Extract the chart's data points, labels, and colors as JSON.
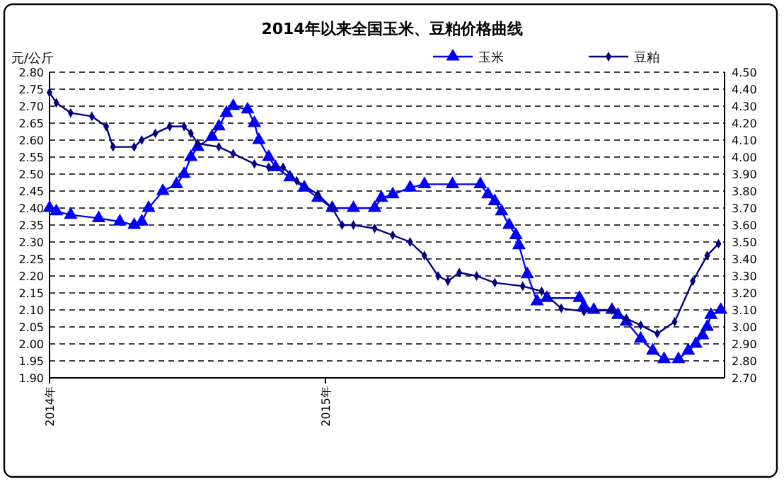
{
  "chart_data": {
    "type": "line",
    "title": "2014年以来全国玉米、豆粕价格曲线",
    "ylabel": "元/公斤",
    "legend": "top",
    "grid": "y",
    "xlim": [
      "2014-01-01",
      "2016-06-12"
    ],
    "xticks": [
      {
        "value": "2014-01-01",
        "label": "2014年"
      },
      {
        "value": "2015-01-01",
        "label": "2015年"
      }
    ],
    "ylim": [
      1.9,
      2.8
    ],
    "yticks": [
      {
        "value": 1.9,
        "label": "1.90"
      },
      {
        "value": 1.95,
        "label": "1.95"
      },
      {
        "value": 2.0,
        "label": "2.00"
      },
      {
        "value": 2.05,
        "label": "2.05"
      },
      {
        "value": 2.1,
        "label": "2.10"
      },
      {
        "value": 2.15,
        "label": "2.15"
      },
      {
        "value": 2.2,
        "label": "2.20"
      },
      {
        "value": 2.25,
        "label": "2.25"
      },
      {
        "value": 2.3,
        "label": "2.30"
      },
      {
        "value": 2.35,
        "label": "2.35"
      },
      {
        "value": 2.4,
        "label": "2.40"
      },
      {
        "value": 2.45,
        "label": "2.45"
      },
      {
        "value": 2.5,
        "label": "2.50"
      },
      {
        "value": 2.55,
        "label": "2.55"
      },
      {
        "value": 2.6,
        "label": "2.60"
      },
      {
        "value": 2.65,
        "label": "2.65"
      },
      {
        "value": 2.7,
        "label": "2.70"
      },
      {
        "value": 2.75,
        "label": "2.75"
      },
      {
        "value": 2.8,
        "label": "2.80"
      }
    ],
    "y2lim": [
      2.7,
      4.5
    ],
    "y2ticks": [
      {
        "value": 2.7,
        "label": "2.70"
      },
      {
        "value": 2.8,
        "label": "2.80"
      },
      {
        "value": 2.9,
        "label": "2.90"
      },
      {
        "value": 3.0,
        "label": "3.00"
      },
      {
        "value": 3.1,
        "label": "3.10"
      },
      {
        "value": 3.2,
        "label": "3.20"
      },
      {
        "value": 3.3,
        "label": "3.30"
      },
      {
        "value": 3.4,
        "label": "3.40"
      },
      {
        "value": 3.5,
        "label": "3.50"
      },
      {
        "value": 3.6,
        "label": "3.60"
      },
      {
        "value": 3.7,
        "label": "3.70"
      },
      {
        "value": 3.8,
        "label": "3.80"
      },
      {
        "value": 3.9,
        "label": "3.90"
      },
      {
        "value": 4.0,
        "label": "4.00"
      },
      {
        "value": 4.1,
        "label": "4.10"
      },
      {
        "value": 4.2,
        "label": "4.20"
      },
      {
        "value": 4.3,
        "label": "4.30"
      },
      {
        "value": 4.4,
        "label": "4.40"
      },
      {
        "value": 4.5,
        "label": "4.50"
      }
    ],
    "series": [
      {
        "name": "玉米",
        "color": "#0000ff",
        "marker": "triangle",
        "x": [
          "2014-01-01",
          "2014-01-10",
          "2014-01-29",
          "2014-03-07",
          "2014-04-04",
          "2014-04-23",
          "2014-05-03",
          "2014-05-12",
          "2014-05-31",
          "2014-06-18",
          "2014-06-28",
          "2014-07-07",
          "2014-07-16",
          "2014-08-04",
          "2014-08-13",
          "2014-08-23",
          "2014-09-01",
          "2014-09-20",
          "2014-09-29",
          "2014-10-05",
          "2014-10-18",
          "2014-10-27",
          "2014-11-15",
          "2014-12-04",
          "2014-12-22",
          "2015-01-10",
          "2015-02-07",
          "2015-03-07",
          "2015-03-16",
          "2015-03-31",
          "2015-04-23",
          "2015-05-12",
          "2015-06-18",
          "2015-07-25",
          "2015-08-04",
          "2015-08-13",
          "2015-08-22",
          "2015-09-01",
          "2015-09-10",
          "2015-09-14",
          "2015-09-25",
          "2015-10-08",
          "2015-10-21",
          "2015-12-03",
          "2015-12-09",
          "2015-12-22",
          "2016-01-15",
          "2016-01-23",
          "2016-02-03",
          "2016-02-22",
          "2016-03-09",
          "2016-03-24",
          "2016-04-12",
          "2016-04-25",
          "2016-05-05",
          "2016-05-14",
          "2016-05-20",
          "2016-05-25",
          "2016-06-07"
        ],
        "values": [
          2.4,
          2.39,
          2.38,
          2.37,
          2.36,
          2.35,
          2.36,
          2.4,
          2.45,
          2.47,
          2.5,
          2.55,
          2.58,
          2.61,
          2.64,
          2.68,
          2.7,
          2.69,
          2.65,
          2.6,
          2.55,
          2.52,
          2.49,
          2.46,
          2.43,
          2.4,
          2.4,
          2.4,
          2.43,
          2.44,
          2.46,
          2.47,
          2.47,
          2.47,
          2.44,
          2.42,
          2.39,
          2.35,
          2.32,
          2.29,
          2.205,
          2.125,
          2.135,
          2.135,
          2.11,
          2.1,
          2.1,
          2.085,
          2.065,
          2.015,
          1.98,
          1.955,
          1.955,
          1.98,
          2.0,
          2.025,
          2.05,
          2.085,
          2.1
        ]
      },
      {
        "name": "豆粕",
        "color": "#000080",
        "marker": "diamond",
        "axis": "y2",
        "x": [
          "2014-01-01",
          "2014-01-10",
          "2014-01-29",
          "2014-02-26",
          "2014-03-17",
          "2014-03-26",
          "2014-04-23",
          "2014-05-03",
          "2014-05-21",
          "2014-06-09",
          "2014-06-28",
          "2014-07-07",
          "2014-07-16",
          "2014-08-13",
          "2014-09-01",
          "2014-09-29",
          "2014-10-18",
          "2014-11-06",
          "2014-11-24",
          "2014-12-22",
          "2015-01-10",
          "2015-01-23",
          "2015-02-07",
          "2015-03-07",
          "2015-03-31",
          "2015-04-23",
          "2015-05-12",
          "2015-05-30",
          "2015-06-12",
          "2015-06-27",
          "2015-07-20",
          "2015-08-13",
          "2015-09-19",
          "2015-10-14",
          "2015-11-09",
          "2015-12-09",
          "2016-01-15",
          "2016-02-03",
          "2016-02-22",
          "2016-03-15",
          "2016-04-07",
          "2016-05-01",
          "2016-05-20",
          "2016-06-04"
        ],
        "values": [
          4.38,
          4.32,
          4.26,
          4.24,
          4.18,
          4.06,
          4.06,
          4.1,
          4.14,
          4.18,
          4.18,
          4.14,
          4.08,
          4.06,
          4.02,
          3.96,
          3.94,
          3.94,
          3.86,
          3.78,
          3.7,
          3.6,
          3.6,
          3.58,
          3.54,
          3.5,
          3.42,
          3.3,
          3.27,
          3.32,
          3.3,
          3.26,
          3.24,
          3.21,
          3.11,
          3.09,
          3.1,
          3.05,
          3.01,
          2.96,
          3.03,
          3.27,
          3.42,
          3.49
        ]
      }
    ]
  }
}
